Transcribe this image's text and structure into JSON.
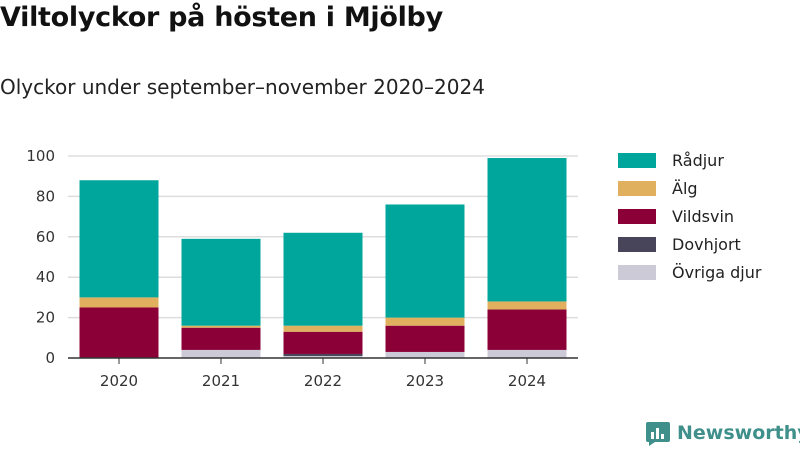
{
  "title": "Viltolyckor på hösten i Mjölby",
  "subtitle": "Olyckor under september–november 2020–2024",
  "logo_text": "Newsworthy",
  "chart_data": {
    "type": "bar",
    "stacked": true,
    "categories": [
      "2020",
      "2021",
      "2022",
      "2023",
      "2024"
    ],
    "series": [
      {
        "name": "Rådjur",
        "color": "#00a69c",
        "values": [
          58,
          43,
          46,
          56,
          71
        ]
      },
      {
        "name": "Älg",
        "color": "#e0b05f",
        "values": [
          5,
          1,
          3,
          4,
          4
        ]
      },
      {
        "name": "Vildsvin",
        "color": "#8c0038",
        "values": [
          25,
          11,
          11,
          13,
          20
        ]
      },
      {
        "name": "Dovhjort",
        "color": "#48455a",
        "values": [
          0,
          0,
          1,
          0,
          0
        ]
      },
      {
        "name": "Övriga djur",
        "color": "#cccad6",
        "values": [
          0,
          4,
          1,
          3,
          4
        ]
      }
    ],
    "stack_order": [
      "Övriga djur",
      "Dovhjort",
      "Vildsvin",
      "Älg",
      "Rådjur"
    ],
    "y_ticks": [
      0,
      20,
      40,
      60,
      80,
      100
    ],
    "ylim": [
      0,
      100
    ],
    "xlabel": "",
    "ylabel": "",
    "grid": true,
    "legend_position": "right"
  }
}
